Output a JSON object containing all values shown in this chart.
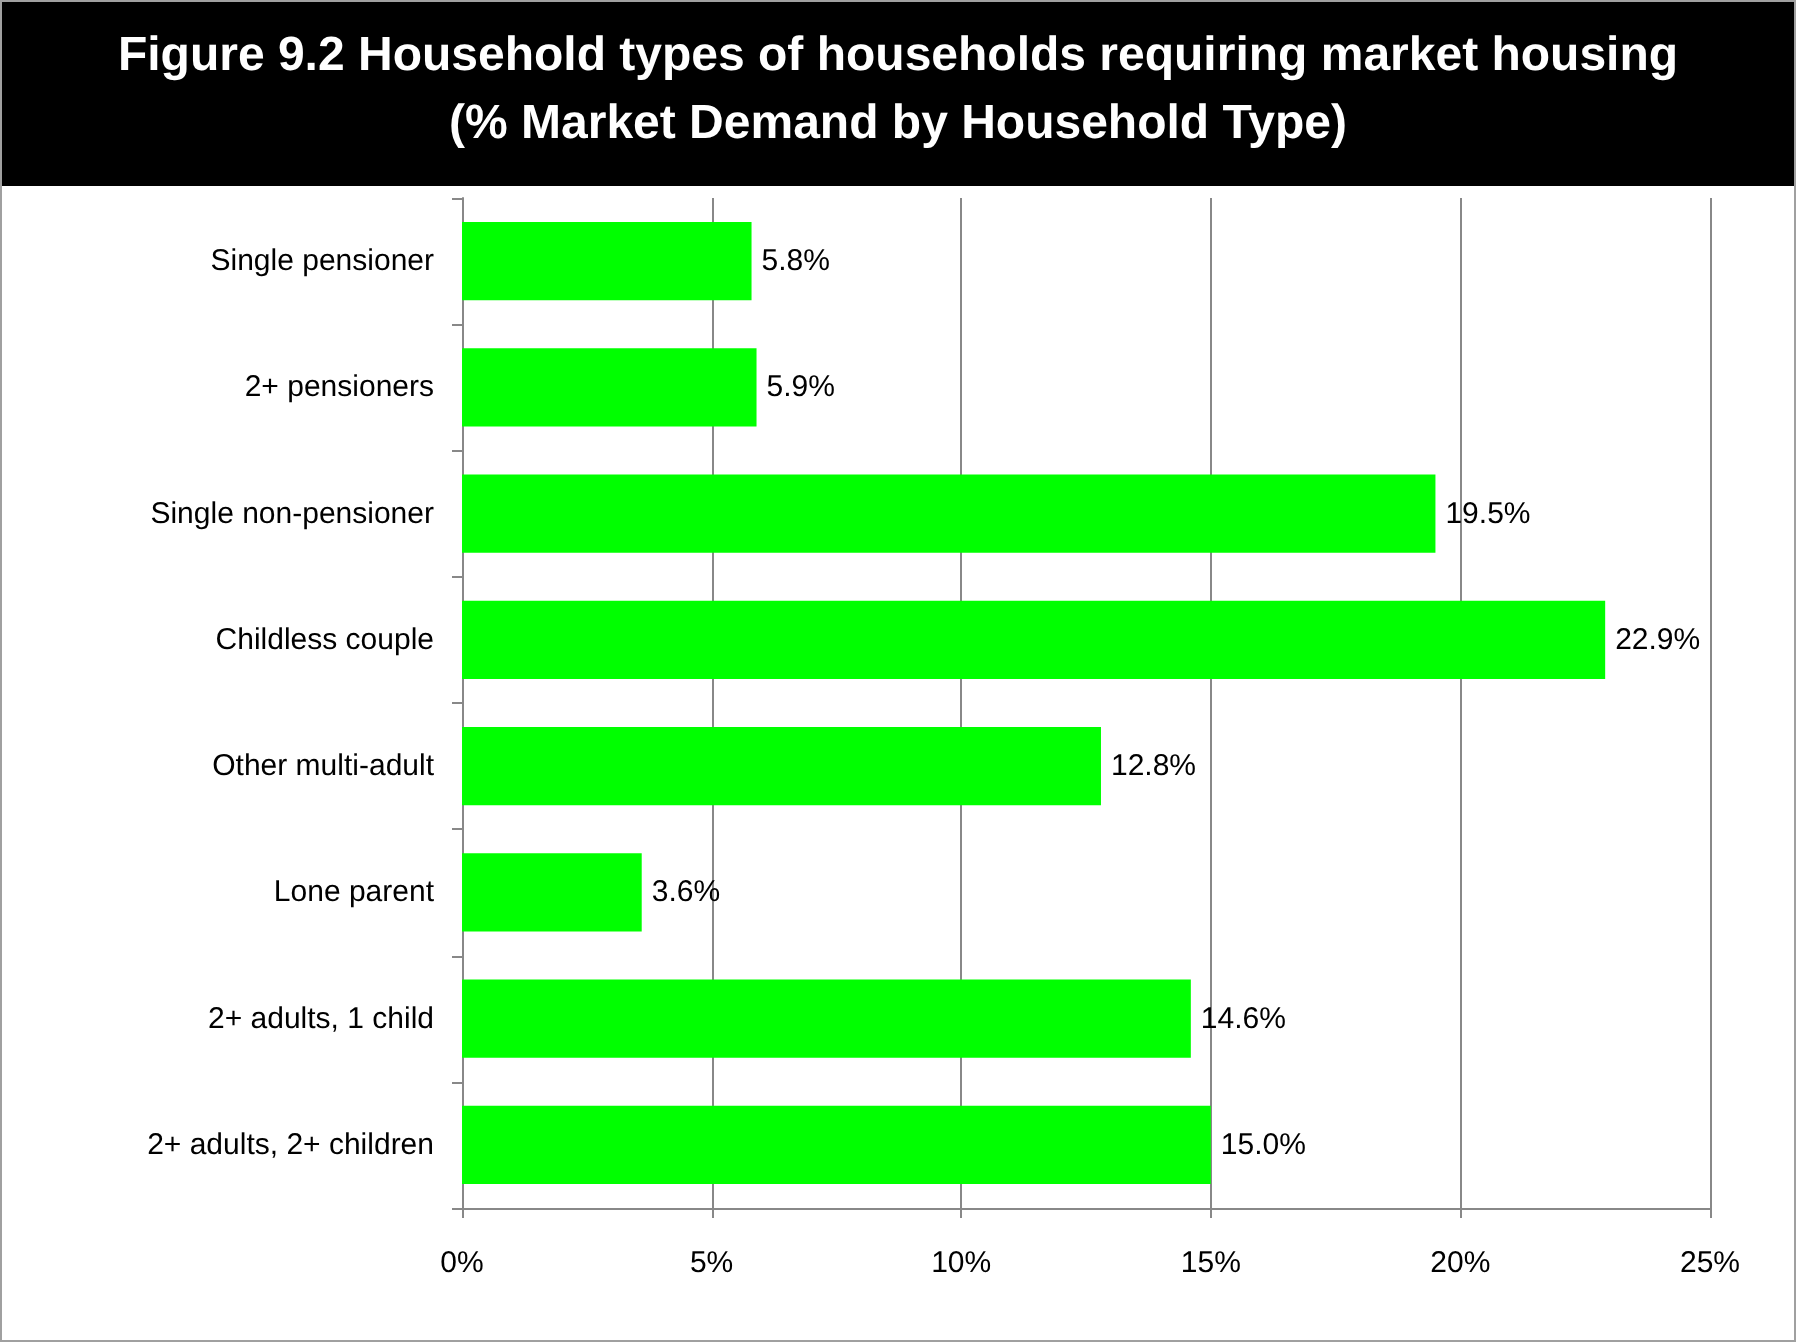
{
  "chart_data": {
    "type": "bar",
    "orientation": "horizontal",
    "title": "Figure 9.2 Household types of households requiring market housing (% Market Demand by Household Type)",
    "categories": [
      "Single pensioner",
      "2+ pensioners",
      "Single non-pensioner",
      "Childless couple",
      "Other multi-adult",
      "Lone parent",
      "2+ adults, 1 child",
      "2+ adults, 2+ children"
    ],
    "values": [
      5.8,
      5.9,
      19.5,
      22.9,
      12.8,
      3.6,
      14.6,
      15.0
    ],
    "value_labels": [
      "5.8%",
      "5.9%",
      "19.5%",
      "22.9%",
      "12.8%",
      "3.6%",
      "14.6%",
      "15.0%"
    ],
    "color": "#00ff00",
    "xlim": [
      0,
      25
    ],
    "xticks": [
      {
        "value": 0,
        "label": "0%"
      },
      {
        "value": 5,
        "label": "5%"
      },
      {
        "value": 10,
        "label": "10%"
      },
      {
        "value": 15,
        "label": "15%"
      },
      {
        "value": 20,
        "label": "20%"
      },
      {
        "value": 25,
        "label": "25%"
      }
    ],
    "grid": "x"
  }
}
